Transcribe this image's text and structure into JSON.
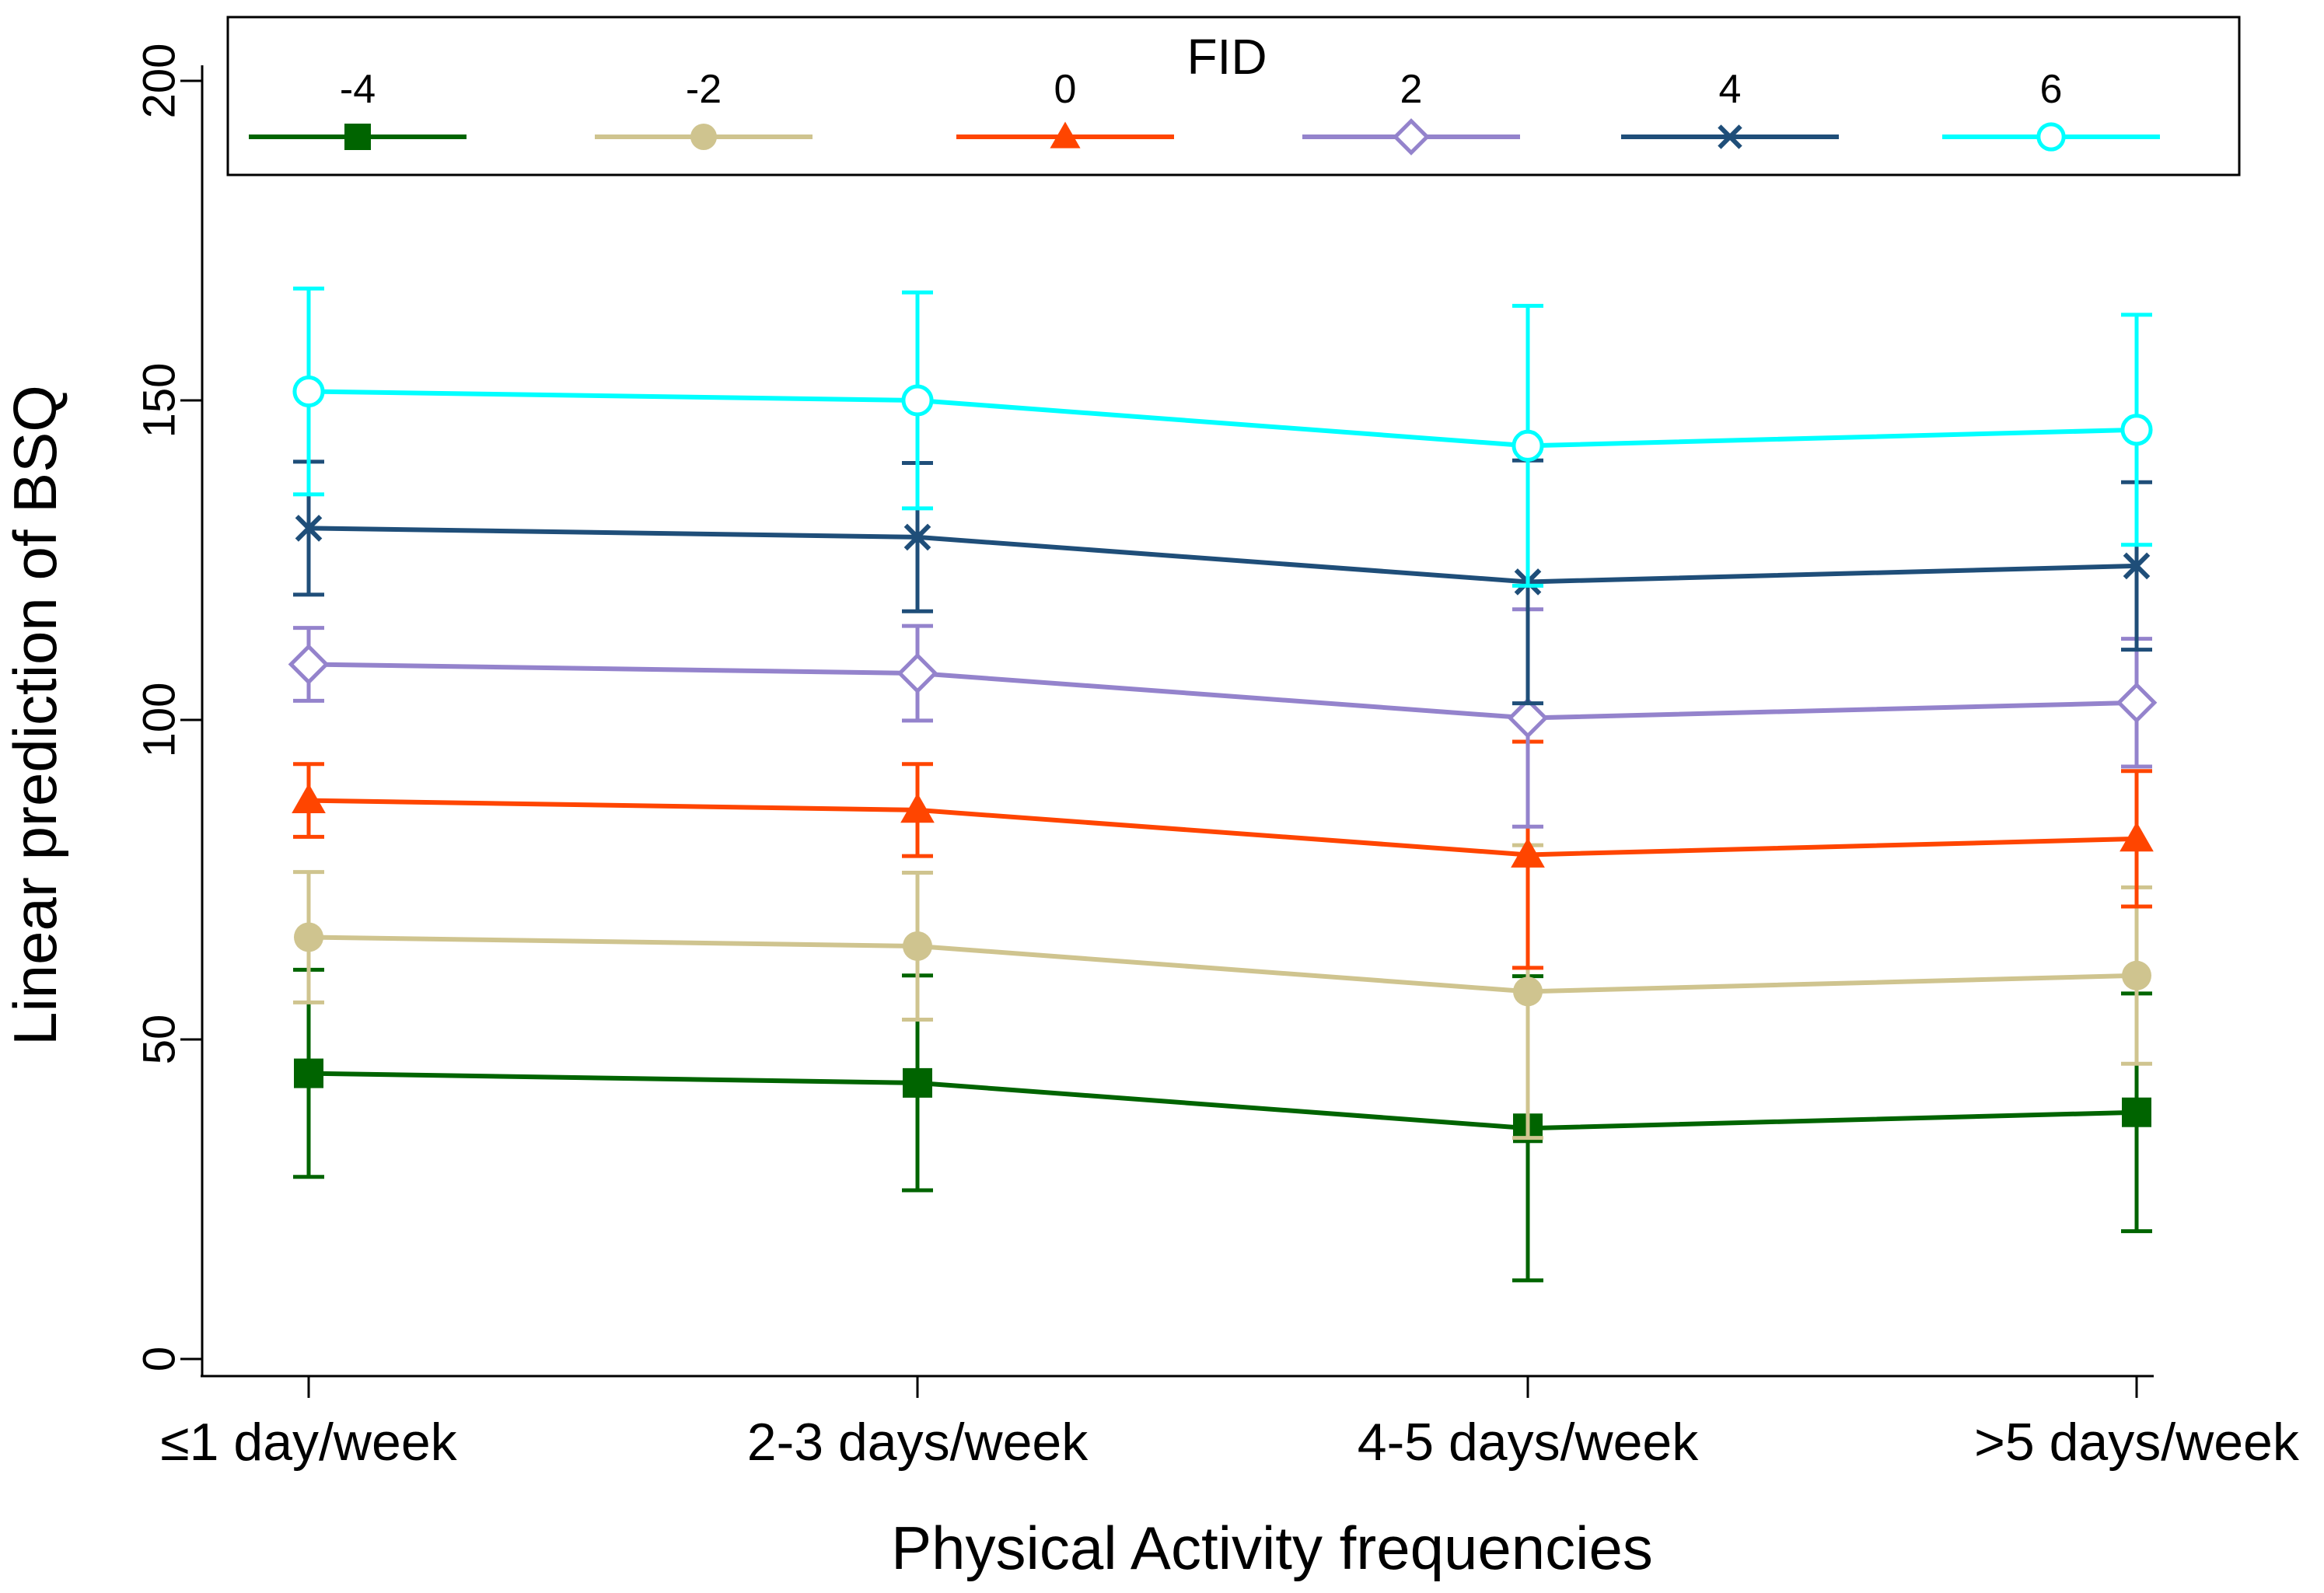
{
  "chart_data": {
    "type": "line",
    "title": "",
    "xlabel": "Physical Activity frequencies",
    "ylabel": "Linear prediction of BSQ",
    "ylim": [
      0,
      200
    ],
    "yticks": [
      0,
      50,
      100,
      150,
      200
    ],
    "categories": [
      "≤1 day/week",
      "2-3 days/week",
      "4-5 days/week",
      ">5 days/week"
    ],
    "grid": false,
    "legend": {
      "title": "FID",
      "placement": "top"
    },
    "series": [
      {
        "name": "-4",
        "color": "#006400",
        "marker": "square-filled",
        "values": [
          44.7,
          43.2,
          36.1,
          38.6
        ],
        "ci_low": [
          28.5,
          26.4,
          12.3,
          20.0
        ],
        "ci_high": [
          60.9,
          60.0,
          59.9,
          57.2
        ]
      },
      {
        "name": "-2",
        "color": "#CFC48F",
        "marker": "circle-filled",
        "values": [
          66.0,
          64.6,
          57.5,
          60.0
        ],
        "ci_low": [
          55.8,
          53.1,
          34.6,
          46.2
        ],
        "ci_high": [
          76.2,
          76.1,
          80.4,
          73.8
        ]
      },
      {
        "name": "0",
        "color": "#FF4500",
        "marker": "triangle-filled",
        "values": [
          87.4,
          85.9,
          78.9,
          81.4
        ],
        "ci_low": [
          81.7,
          78.7,
          61.2,
          70.8
        ],
        "ci_high": [
          93.1,
          93.1,
          96.6,
          92.0
        ]
      },
      {
        "name": "2",
        "color": "#9483CC",
        "marker": "diamond-open",
        "values": [
          108.7,
          107.3,
          100.3,
          102.7
        ],
        "ci_low": [
          103.0,
          99.9,
          83.3,
          92.7
        ],
        "ci_high": [
          114.4,
          114.7,
          117.3,
          112.7
        ]
      },
      {
        "name": "4",
        "color": "#1F4E79",
        "marker": "x",
        "values": [
          130.0,
          128.6,
          121.6,
          124.1
        ],
        "ci_low": [
          119.6,
          117.0,
          102.6,
          111.0
        ],
        "ci_high": [
          140.4,
          140.2,
          140.6,
          137.2
        ]
      },
      {
        "name": "6",
        "color": "#00FFFF",
        "marker": "circle-open",
        "values": [
          151.4,
          150.0,
          142.9,
          145.4
        ],
        "ci_low": [
          135.3,
          133.1,
          121.0,
          127.4
        ],
        "ci_high": [
          167.5,
          166.9,
          164.8,
          163.4
        ]
      }
    ]
  }
}
